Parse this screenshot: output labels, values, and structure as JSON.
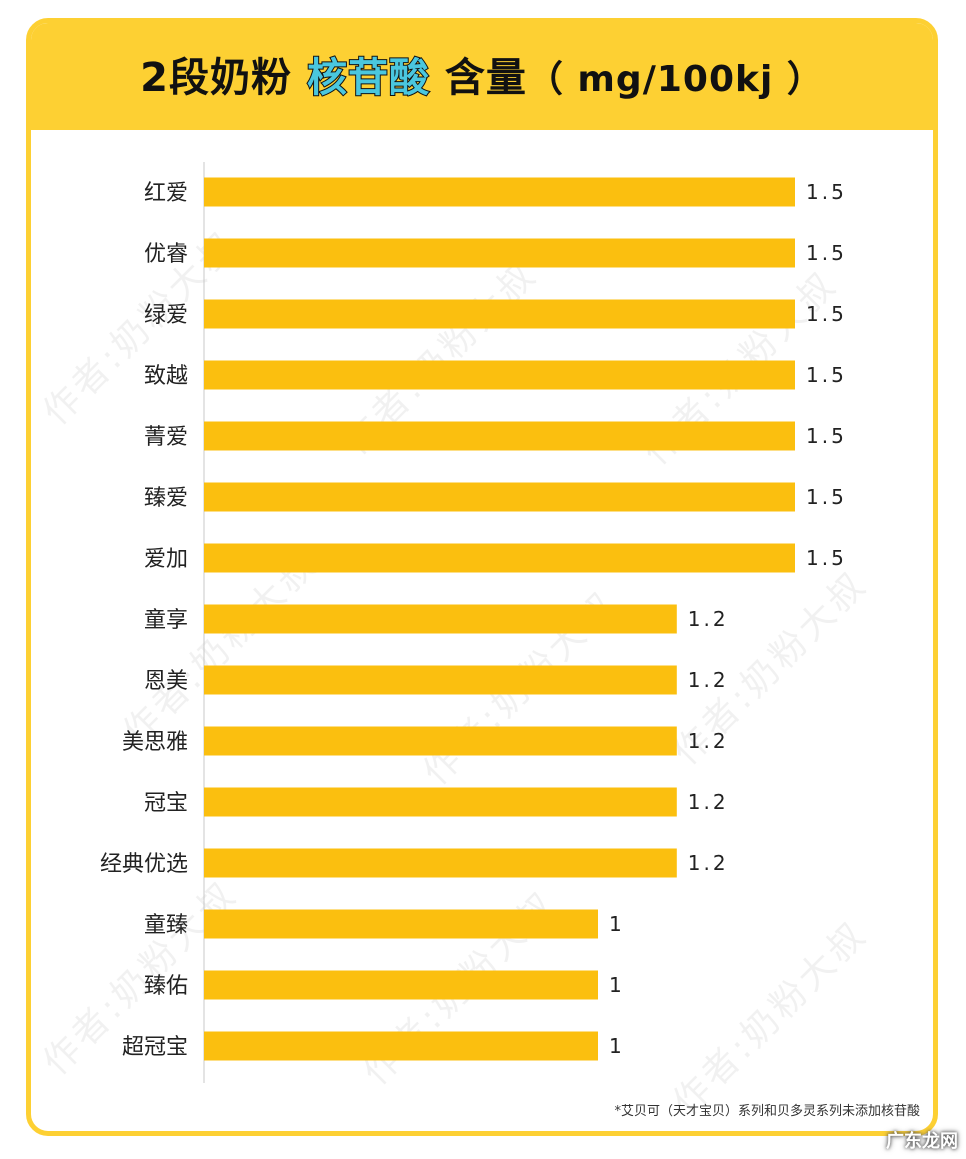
{
  "chart_data": {
    "type": "bar",
    "orientation": "horizontal",
    "title": {
      "prefix": "2段奶粉",
      "highlight": "核苷酸",
      "suffix": "含量",
      "unit": "（ mg/100kj ）"
    },
    "categories": [
      "红爱",
      "优睿",
      "绿爱",
      "致越",
      "菁爱",
      "臻爱",
      "爱加",
      "童享",
      "恩美",
      "美思雅",
      "冠宝",
      "经典优选",
      "童臻",
      "臻佑",
      "超冠宝"
    ],
    "values": [
      1.5,
      1.5,
      1.5,
      1.5,
      1.5,
      1.5,
      1.5,
      1.2,
      1.2,
      1.2,
      1.2,
      1.2,
      1,
      1,
      1
    ],
    "value_labels": [
      "1.5",
      "1.5",
      "1.5",
      "1.5",
      "1.5",
      "1.5",
      "1.5",
      "1.2",
      "1.2",
      "1.2",
      "1.2",
      "1.2",
      "1",
      "1",
      "1"
    ],
    "xlim": [
      0,
      1.5
    ],
    "bar_color": "#fbbf0f"
  },
  "footnote": "*艾贝可（天才宝贝）系列和贝多灵系列未添加核苷酸",
  "watermark": "作者:奶粉大叔",
  "brand": "广东龙网",
  "colors": {
    "header": "#fdd033",
    "highlight": "#4ac7de",
    "bar": "#fbbf0f"
  }
}
